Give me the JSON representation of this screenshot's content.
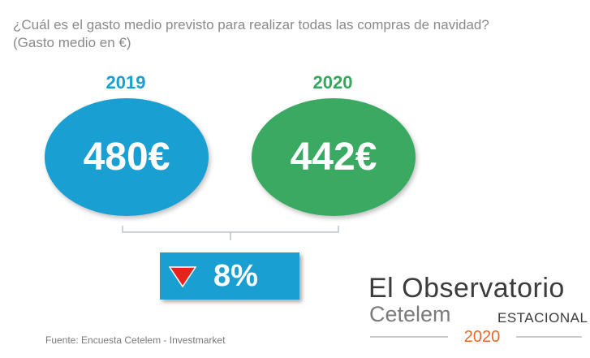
{
  "question": {
    "line1": "¿Cuál es el gasto medio previsto para realizar todas las compras de navidad?",
    "line2": "(Gasto medio en €)"
  },
  "chart_data": {
    "type": "comparison",
    "title": "¿Cuál es el gasto medio previsto para realizar todas las compras de navidad?",
    "unit": "Gasto medio en €",
    "categories": [
      "2019",
      "2020"
    ],
    "values": [
      480,
      442
    ],
    "value_labels": [
      "480€",
      "442€"
    ],
    "change": {
      "direction": "down",
      "label": "8%"
    },
    "colors": {
      "2019": "#199fd1",
      "2020": "#3aaa62",
      "change_box": "#199fd1",
      "arrow": "#e8231b"
    }
  },
  "source": "Fuente: Encuesta Cetelem - Investmarket",
  "logo": {
    "line1": "El Observatorio",
    "line2": "Cetelem",
    "edition": "ESTACIONAL",
    "year": "2020"
  }
}
